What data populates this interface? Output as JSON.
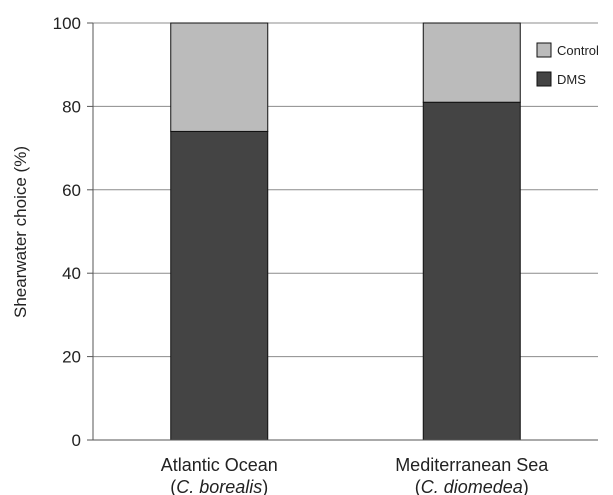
{
  "chart_data": {
    "type": "bar",
    "stacked": true,
    "categories": [
      {
        "name": "Atlantic Ocean",
        "species": "C. borealis"
      },
      {
        "name": "Mediterranean Sea",
        "species": "C. diomedea"
      }
    ],
    "series": [
      {
        "name": "DMS",
        "values": [
          74,
          81
        ],
        "color": "#444444"
      },
      {
        "name": "Control",
        "values": [
          26,
          19
        ],
        "color": "#bbbbbb"
      }
    ],
    "ylabel": "Shearwater choice (%)",
    "xlabel": "",
    "title": "",
    "ylim": [
      0,
      100
    ],
    "yticks": [
      0,
      20,
      40,
      60,
      80,
      100
    ],
    "grid": true,
    "legend": {
      "position": "top-right",
      "entries": [
        {
          "label": "Control",
          "color": "#bbbbbb"
        },
        {
          "label": "DMS",
          "color": "#444444"
        }
      ]
    }
  }
}
